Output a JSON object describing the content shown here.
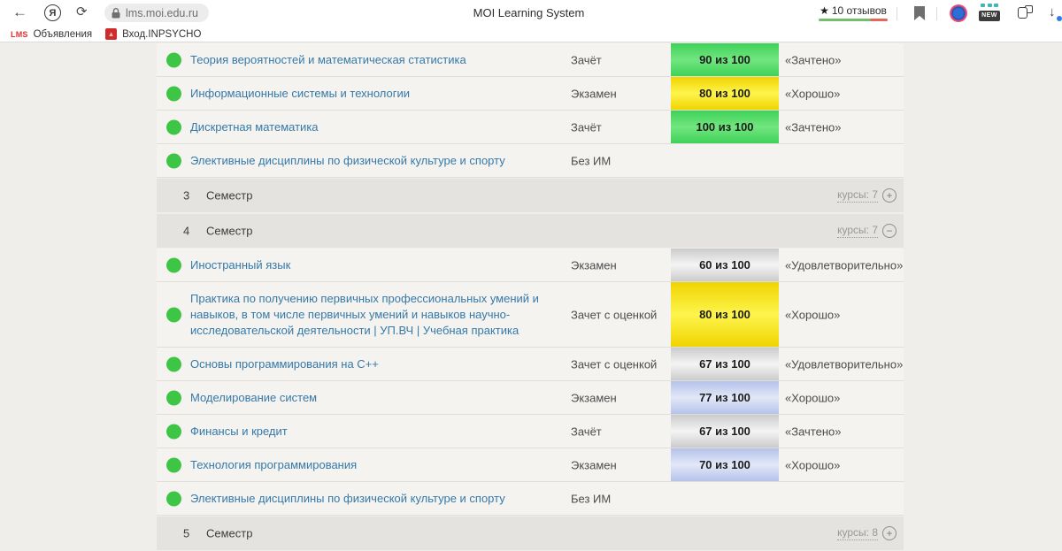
{
  "browser": {
    "url": "lms.moi.edu.ru",
    "tab_title": "MOI Learning System",
    "rating": {
      "star": "★",
      "label": "10 отзывов"
    },
    "back_glyph": "←",
    "yandex_glyph": "Я",
    "refresh_glyph": "⟳",
    "new_badge_label": "NEW",
    "download_glyph": "↓",
    "bookmarks": [
      {
        "icon_label": "LMS",
        "label": "Объявления"
      },
      {
        "icon_label": "▲",
        "label": "Вход.INPSYCHO"
      }
    ]
  },
  "colors": {
    "page_bg": "#efeeea",
    "row_bg": "#f5f3f0",
    "semester_bg": "#e5e3df",
    "link": "#3579a8",
    "status_dot": "#3fc546",
    "rating_bar_green": "#73bf69",
    "rating_bar_red": "#e3655b",
    "badge_styles": {
      "green": [
        "#3ed158",
        "#72e680"
      ],
      "yellow": [
        "#f0d400",
        "#fdf44d"
      ],
      "gray": [
        "#cbcbcb",
        "#f4f4f4"
      ],
      "blue": [
        "#b5c2ea",
        "#e3e8f8"
      ]
    }
  },
  "table": {
    "rows": [
      {
        "type": "course",
        "name": "Теория вероятностей и математическая статистика",
        "exam": "Зачёт",
        "score": "90 из 100",
        "badge": "green",
        "grade": "«Зачтено»"
      },
      {
        "type": "course",
        "name": "Информационные системы и технологии",
        "exam": "Экзамен",
        "score": "80 из 100",
        "badge": "yellow",
        "grade": "«Хорошо»"
      },
      {
        "type": "course",
        "name": "Дискретная математика",
        "exam": "Зачёт",
        "score": "100 из 100",
        "badge": "green",
        "grade": "«Зачтено»"
      },
      {
        "type": "course",
        "name": "Элективные дисциплины по физической культуре и спорту",
        "exam": "Без ИМ",
        "score": "",
        "badge": "",
        "grade": ""
      },
      {
        "type": "semester",
        "number": "3",
        "label": "Семестр",
        "courses_label": "курсы: 7",
        "toggle": "+"
      },
      {
        "type": "semester",
        "number": "4",
        "label": "Семестр",
        "courses_label": "курсы: 7",
        "toggle": "−"
      },
      {
        "type": "course",
        "name": "Иностранный язык",
        "exam": "Экзамен",
        "score": "60 из 100",
        "badge": "gray",
        "grade": "«Удовлетворительно»"
      },
      {
        "type": "course",
        "tall": true,
        "name": "Практика по получению первичных профессиональных умений и навыков, в том числе первичных умений и навыков научно-исследовательской деятельности | УП.ВЧ | Учебная практика",
        "exam": "Зачет с оценкой",
        "score": "80 из 100",
        "badge": "yellow",
        "grade": "«Хорошо»"
      },
      {
        "type": "course",
        "name": "Основы программирования на C++",
        "exam": "Зачет с оценкой",
        "score": "67 из 100",
        "badge": "gray",
        "grade": "«Удовлетворительно»"
      },
      {
        "type": "course",
        "name": "Моделирование систем",
        "exam": "Экзамен",
        "score": "77 из 100",
        "badge": "blue",
        "grade": "«Хорошо»"
      },
      {
        "type": "course",
        "name": "Финансы и кредит",
        "exam": "Зачёт",
        "score": "67 из 100",
        "badge": "gray",
        "grade": "«Зачтено»"
      },
      {
        "type": "course",
        "name": "Технология программирования",
        "exam": "Экзамен",
        "score": "70 из 100",
        "badge": "blue",
        "grade": "«Хорошо»"
      },
      {
        "type": "course",
        "name": "Элективные дисциплины по физической культуре и спорту",
        "exam": "Без ИМ",
        "score": "",
        "badge": "",
        "grade": ""
      },
      {
        "type": "semester",
        "number": "5",
        "label": "Семестр",
        "courses_label": "курсы: 8",
        "toggle": "+"
      }
    ]
  }
}
